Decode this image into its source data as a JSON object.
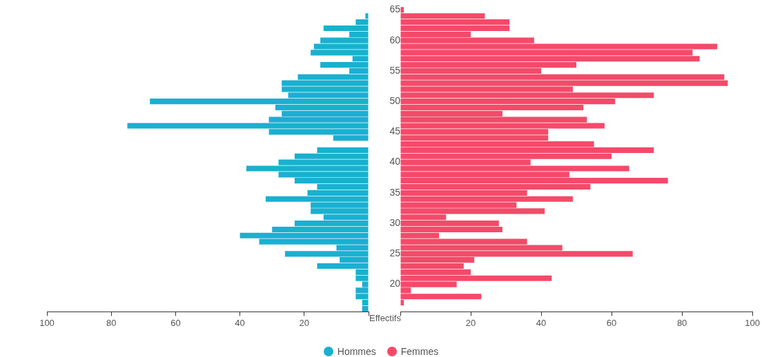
{
  "chart_data": [
    {
      "type": "bar",
      "orientation": "horizontal",
      "tick_labels": "x",
      "categories": [
        "65",
        null,
        null,
        null,
        null,
        "60",
        null,
        null,
        null,
        null,
        "55",
        null,
        null,
        null,
        null,
        "50",
        null,
        null,
        null,
        null,
        "45",
        null,
        null,
        null,
        null,
        "40",
        null,
        null,
        null,
        null,
        "35",
        null,
        null,
        null,
        null,
        "30",
        null,
        null,
        null,
        null,
        "25",
        null,
        null,
        null,
        null,
        "20",
        null,
        null,
        null,
        null
      ],
      "series": [
        {
          "name": "Hommes",
          "color": "#1ab0d0",
          "values": [
            null,
            1,
            4,
            14,
            6,
            15,
            17,
            18,
            5,
            15,
            6,
            22,
            27,
            27,
            25,
            68,
            29,
            27,
            31,
            75,
            31,
            11,
            null,
            16,
            23,
            28,
            38,
            28,
            23,
            16,
            19,
            32,
            18,
            18,
            14,
            23,
            30,
            40,
            34,
            10,
            26,
            9,
            16,
            4,
            4,
            2,
            4,
            4,
            2,
            2
          ]
        }
      ],
      "xlim": [
        100,
        0
      ],
      "xticks": [
        100,
        80,
        60,
        40,
        20,
        {
          "value": 0,
          "label": null
        }
      ],
      "grid": false,
      "legend": "bottom"
    },
    {
      "type": "bar",
      "orientation": "horizontal",
      "xlabel": "Effectifs",
      "categories": [
        "65",
        null,
        null,
        null,
        null,
        "60",
        null,
        null,
        null,
        null,
        "55",
        null,
        null,
        null,
        null,
        "50",
        null,
        null,
        null,
        null,
        "45",
        null,
        null,
        null,
        null,
        "40",
        null,
        null,
        null,
        null,
        "35",
        null,
        null,
        null,
        null,
        "30",
        null,
        null,
        null,
        null,
        "25",
        null,
        null,
        null,
        null,
        "20",
        null,
        null,
        null,
        null
      ],
      "series": [
        {
          "name": "Femmes",
          "color": "#f44a6a",
          "values": [
            1,
            24,
            31,
            31,
            20,
            38,
            90,
            83,
            85,
            50,
            40,
            92,
            93,
            49,
            72,
            61,
            52,
            29,
            53,
            58,
            42,
            42,
            55,
            72,
            60,
            37,
            65,
            48,
            76,
            54,
            36,
            49,
            33,
            41,
            13,
            28,
            29,
            11,
            36,
            46,
            66,
            21,
            18,
            20,
            43,
            16,
            3,
            23,
            1,
            null
          ]
        }
      ],
      "xlim": [
        0,
        100
      ],
      "xticks": [
        {
          "value": 0,
          "label": null
        },
        20,
        40,
        60,
        80,
        100
      ],
      "grid": false,
      "legend": "bottom"
    }
  ]
}
